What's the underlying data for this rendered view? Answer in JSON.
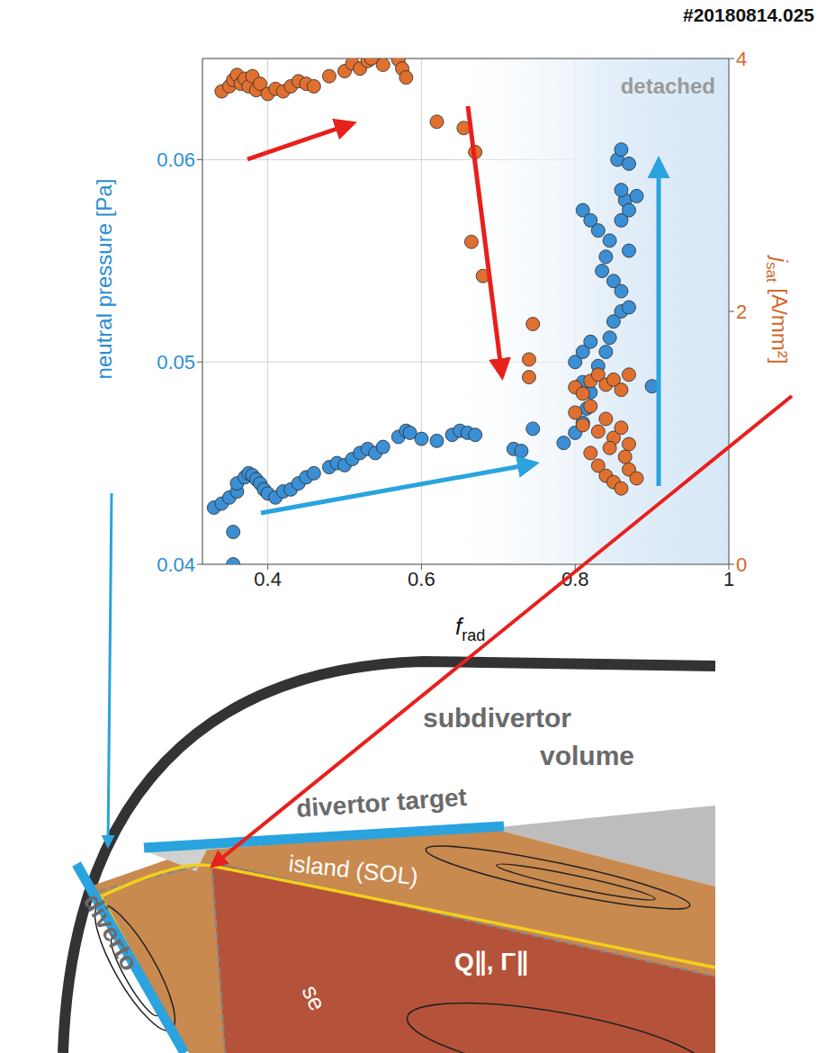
{
  "chart_data": {
    "type": "scatter",
    "title": "#20180814.025",
    "xlabel": {
      "text": "f",
      "subscript": "rad"
    },
    "ylabel": "neutral pressure [Pa]",
    "y2label": {
      "text": "j",
      "subscript": "sat",
      "unit": " [A/mm²]"
    },
    "xlim": [
      0.315,
      1
    ],
    "xticks": [
      0.4,
      0.6,
      0.8,
      1
    ],
    "ylim": [
      0.04,
      0.065
    ],
    "yticks": [
      0.04,
      0.05,
      0.06
    ],
    "y2lim": [
      0,
      4
    ],
    "y2ticks": [
      0,
      2,
      4
    ],
    "grid": true,
    "shaded_region": {
      "label": "detached",
      "xlim": [
        0.62,
        1
      ]
    },
    "series": [
      {
        "color": "#3b8fd4",
        "marker": "circle",
        "axis": "y",
        "x": [
          0.355,
          0.355,
          0.33,
          0.34,
          0.35,
          0.36,
          0.36,
          0.37,
          0.375,
          0.38,
          0.385,
          0.39,
          0.395,
          0.4,
          0.41,
          0.42,
          0.43,
          0.44,
          0.45,
          0.46,
          0.48,
          0.49,
          0.5,
          0.51,
          0.52,
          0.53,
          0.54,
          0.55,
          0.57,
          0.58,
          0.585,
          0.6,
          0.62,
          0.64,
          0.65,
          0.66,
          0.67,
          0.72,
          0.73,
          0.745,
          0.785,
          0.8,
          0.81,
          0.815,
          0.82,
          0.81,
          0.8,
          0.81,
          0.82,
          0.83,
          0.84,
          0.845,
          0.85,
          0.86,
          0.87,
          0.835,
          0.84,
          0.85,
          0.86,
          0.81,
          0.82,
          0.83,
          0.86,
          0.865,
          0.87,
          0.88,
          0.855,
          0.86,
          0.87,
          0.86,
          0.9,
          0.87,
          0.845
        ],
        "values": [
          0.04,
          0.0416,
          0.0428,
          0.043,
          0.0433,
          0.0436,
          0.044,
          0.0443,
          0.0445,
          0.0444,
          0.0442,
          0.044,
          0.0437,
          0.0435,
          0.0433,
          0.0436,
          0.0437,
          0.044,
          0.0443,
          0.0445,
          0.0448,
          0.045,
          0.0449,
          0.0452,
          0.0455,
          0.0457,
          0.0455,
          0.0458,
          0.0463,
          0.0466,
          0.0465,
          0.0462,
          0.0461,
          0.0464,
          0.0466,
          0.0465,
          0.0464,
          0.0457,
          0.0456,
          0.0467,
          0.046,
          0.0465,
          0.047,
          0.0477,
          0.0485,
          0.049,
          0.05,
          0.0505,
          0.051,
          0.0498,
          0.0505,
          0.0512,
          0.052,
          0.0525,
          0.0527,
          0.0545,
          0.0552,
          0.054,
          0.0535,
          0.0575,
          0.057,
          0.0565,
          0.057,
          0.058,
          0.0575,
          0.0582,
          0.06,
          0.0605,
          0.0598,
          0.0585,
          0.0488,
          0.0555,
          0.056
        ]
      },
      {
        "color": "#e07030",
        "marker": "circle",
        "axis": "y2",
        "x": [
          0.34,
          0.35,
          0.355,
          0.36,
          0.365,
          0.37,
          0.375,
          0.38,
          0.385,
          0.39,
          0.4,
          0.41,
          0.42,
          0.43,
          0.44,
          0.45,
          0.46,
          0.48,
          0.5,
          0.51,
          0.52,
          0.53,
          0.535,
          0.55,
          0.57,
          0.575,
          0.58,
          0.62,
          0.655,
          0.67,
          0.665,
          0.68,
          0.745,
          0.74,
          0.74,
          0.8,
          0.81,
          0.82,
          0.83,
          0.84,
          0.85,
          0.86,
          0.87,
          0.8,
          0.81,
          0.82,
          0.83,
          0.84,
          0.85,
          0.86,
          0.87,
          0.82,
          0.83,
          0.84,
          0.85,
          0.86,
          0.87,
          0.88,
          0.865,
          0.845
        ],
        "values": [
          3.74,
          3.78,
          3.83,
          3.87,
          3.8,
          3.84,
          3.78,
          3.86,
          3.75,
          3.8,
          3.72,
          3.76,
          3.74,
          3.78,
          3.82,
          3.8,
          3.78,
          3.86,
          3.9,
          3.96,
          3.92,
          3.98,
          4.0,
          3.95,
          3.99,
          3.92,
          3.85,
          3.5,
          3.45,
          3.26,
          2.55,
          2.28,
          1.9,
          1.62,
          1.48,
          1.4,
          1.35,
          1.45,
          1.5,
          1.42,
          1.46,
          1.38,
          1.5,
          1.2,
          1.1,
          1.25,
          1.05,
          1.15,
          1.0,
          1.08,
          0.95,
          0.88,
          0.78,
          0.7,
          0.65,
          0.6,
          0.75,
          0.68,
          0.85,
          0.92
        ]
      }
    ]
  },
  "diagram": {
    "labels": {
      "chamber": "subdivertor volume",
      "target": "divertor target",
      "side_target": "diverto",
      "island": "island (SOL)",
      "flux": "Q∥, Γ∥",
      "separatrix": "se"
    }
  }
}
